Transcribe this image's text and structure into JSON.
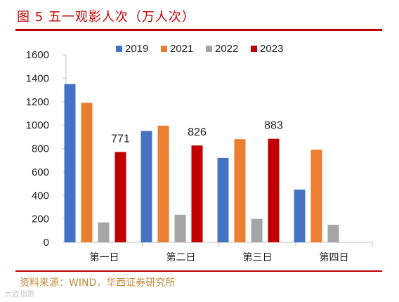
{
  "figure": {
    "title": "图 5  五一观影人次（万人次）",
    "source": "资料来源：WIND，华西证券研究所",
    "watermark": "大欧指数"
  },
  "colors": {
    "rule": "#c00000",
    "axis": "#bfbfbf",
    "series": [
      "#4472c4",
      "#ed7d31",
      "#a5a5a5",
      "#c00000"
    ]
  },
  "chart_data": {
    "type": "bar",
    "categories": [
      "第一日",
      "第二日",
      "第三日",
      "第四日"
    ],
    "series": [
      {
        "name": "2019",
        "values": [
          1350,
          950,
          720,
          450
        ]
      },
      {
        "name": "2021",
        "values": [
          1190,
          995,
          880,
          790
        ]
      },
      {
        "name": "2022",
        "values": [
          170,
          235,
          200,
          150
        ]
      },
      {
        "name": "2023",
        "values": [
          771,
          826,
          883,
          null
        ]
      }
    ],
    "data_labels": {
      "series": "2023",
      "values": [
        "771",
        "826",
        "883"
      ]
    },
    "yticks": [
      "0",
      "200",
      "400",
      "600",
      "800",
      "1000",
      "1200",
      "1400",
      "1600"
    ],
    "ylim": [
      0,
      1600
    ],
    "legend_position": "top",
    "grid": false
  }
}
